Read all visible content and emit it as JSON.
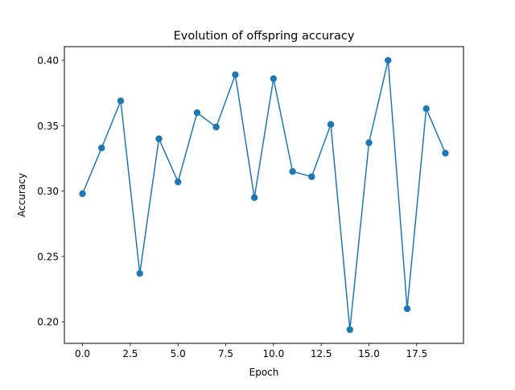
{
  "chart_data": {
    "type": "line",
    "title": "Evolution of offspring accuracy",
    "xlabel": "Epoch",
    "ylabel": "Accuracy",
    "xlim": [
      -0.95,
      19.95
    ],
    "ylim": [
      0.1835,
      0.4105
    ],
    "x_ticks": [
      0.0,
      2.5,
      5.0,
      7.5,
      10.0,
      12.5,
      15.0,
      17.5
    ],
    "x_tick_labels": [
      "0.0",
      "2.5",
      "5.0",
      "7.5",
      "10.0",
      "12.5",
      "15.0",
      "17.5"
    ],
    "y_ticks": [
      0.2,
      0.25,
      0.3,
      0.35,
      0.4
    ],
    "y_tick_labels": [
      "0.20",
      "0.25",
      "0.30",
      "0.35",
      "0.40"
    ],
    "grid": false,
    "marker": "circle",
    "series": [
      {
        "color": "#1f77b4",
        "x": [
          0,
          1,
          2,
          3,
          4,
          5,
          6,
          7,
          8,
          9,
          10,
          11,
          12,
          13,
          14,
          15,
          16,
          17,
          18,
          19
        ],
        "y": [
          0.298,
          0.333,
          0.369,
          0.237,
          0.34,
          0.307,
          0.36,
          0.349,
          0.389,
          0.295,
          0.386,
          0.315,
          0.311,
          0.351,
          0.194,
          0.337,
          0.4,
          0.21,
          0.363,
          0.329
        ]
      }
    ]
  }
}
